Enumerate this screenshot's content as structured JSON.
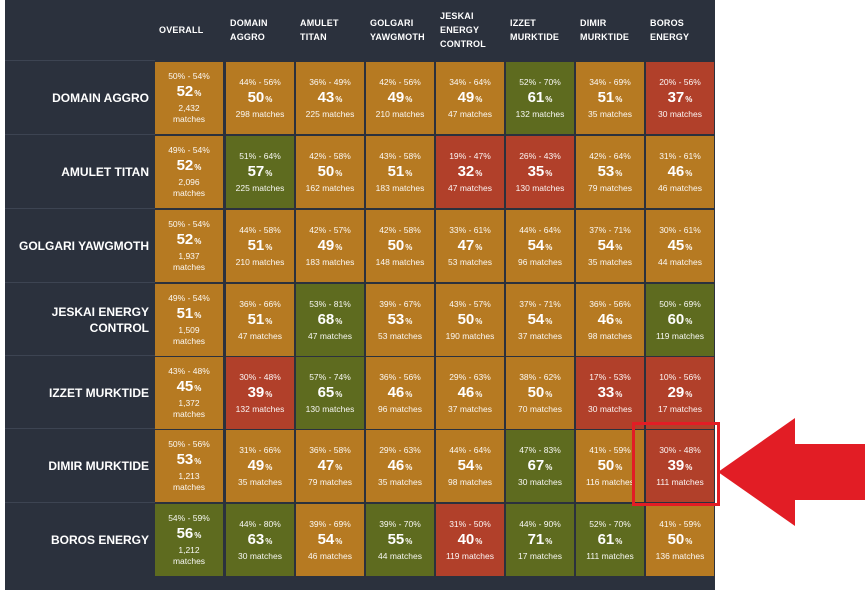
{
  "columns": [
    "OVERALL",
    "DOMAIN AGGRO",
    "AMULET TITAN",
    "GOLGARI YAWGMOTH",
    "JESKAI ENERGY CONTROL",
    "IZZET MURKTIDE",
    "DIMIR MURKTIDE",
    "BOROS ENERGY"
  ],
  "colors": {
    "background": "#2b313d",
    "even": "#b67a22",
    "favored": "#5e6b1f",
    "unfavored": "#b1402a",
    "highlight": "#e21d25"
  },
  "percent_symbol": "%",
  "rows": [
    {
      "label": "DOMAIN AGGRO",
      "cells": [
        {
          "range": "50% - 54%",
          "pct": "52",
          "matches": "2,432 matches",
          "tone": "even"
        },
        {
          "range": "44% - 56%",
          "pct": "50",
          "matches": "298 matches",
          "tone": "even"
        },
        {
          "range": "36% - 49%",
          "pct": "43",
          "matches": "225 matches",
          "tone": "even"
        },
        {
          "range": "42% - 56%",
          "pct": "49",
          "matches": "210 matches",
          "tone": "even"
        },
        {
          "range": "34% - 64%",
          "pct": "49",
          "matches": "47 matches",
          "tone": "even"
        },
        {
          "range": "52% - 70%",
          "pct": "61",
          "matches": "132 matches",
          "tone": "favored"
        },
        {
          "range": "34% - 69%",
          "pct": "51",
          "matches": "35 matches",
          "tone": "even"
        },
        {
          "range": "20% - 56%",
          "pct": "37",
          "matches": "30 matches",
          "tone": "unfavored"
        }
      ]
    },
    {
      "label": "AMULET TITAN",
      "cells": [
        {
          "range": "49% - 54%",
          "pct": "52",
          "matches": "2,096 matches",
          "tone": "even"
        },
        {
          "range": "51% - 64%",
          "pct": "57",
          "matches": "225 matches",
          "tone": "favored"
        },
        {
          "range": "42% - 58%",
          "pct": "50",
          "matches": "162 matches",
          "tone": "even"
        },
        {
          "range": "43% - 58%",
          "pct": "51",
          "matches": "183 matches",
          "tone": "even"
        },
        {
          "range": "19% - 47%",
          "pct": "32",
          "matches": "47 matches",
          "tone": "unfavored"
        },
        {
          "range": "26% - 43%",
          "pct": "35",
          "matches": "130 matches",
          "tone": "unfavored"
        },
        {
          "range": "42% - 64%",
          "pct": "53",
          "matches": "79 matches",
          "tone": "even"
        },
        {
          "range": "31% - 61%",
          "pct": "46",
          "matches": "46 matches",
          "tone": "even"
        }
      ]
    },
    {
      "label": "GOLGARI YAWGMOTH",
      "cells": [
        {
          "range": "50% - 54%",
          "pct": "52",
          "matches": "1,937 matches",
          "tone": "even"
        },
        {
          "range": "44% - 58%",
          "pct": "51",
          "matches": "210 matches",
          "tone": "even"
        },
        {
          "range": "42% - 57%",
          "pct": "49",
          "matches": "183 matches",
          "tone": "even"
        },
        {
          "range": "42% - 58%",
          "pct": "50",
          "matches": "148 matches",
          "tone": "even"
        },
        {
          "range": "33% - 61%",
          "pct": "47",
          "matches": "53 matches",
          "tone": "even"
        },
        {
          "range": "44% - 64%",
          "pct": "54",
          "matches": "96 matches",
          "tone": "even"
        },
        {
          "range": "37% - 71%",
          "pct": "54",
          "matches": "35 matches",
          "tone": "even"
        },
        {
          "range": "30% - 61%",
          "pct": "45",
          "matches": "44 matches",
          "tone": "even"
        }
      ]
    },
    {
      "label": "JESKAI ENERGY CONTROL",
      "cells": [
        {
          "range": "49% - 54%",
          "pct": "51",
          "matches": "1,509 matches",
          "tone": "even"
        },
        {
          "range": "36% - 66%",
          "pct": "51",
          "matches": "47 matches",
          "tone": "even"
        },
        {
          "range": "53% - 81%",
          "pct": "68",
          "matches": "47 matches",
          "tone": "favored"
        },
        {
          "range": "39% - 67%",
          "pct": "53",
          "matches": "53 matches",
          "tone": "even"
        },
        {
          "range": "43% - 57%",
          "pct": "50",
          "matches": "190 matches",
          "tone": "even"
        },
        {
          "range": "37% - 71%",
          "pct": "54",
          "matches": "37 matches",
          "tone": "even"
        },
        {
          "range": "36% - 56%",
          "pct": "46",
          "matches": "98 matches",
          "tone": "even"
        },
        {
          "range": "50% - 69%",
          "pct": "60",
          "matches": "119 matches",
          "tone": "favored"
        }
      ]
    },
    {
      "label": "IZZET MURKTIDE",
      "cells": [
        {
          "range": "43% - 48%",
          "pct": "45",
          "matches": "1,372 matches",
          "tone": "even"
        },
        {
          "range": "30% - 48%",
          "pct": "39",
          "matches": "132 matches",
          "tone": "unfavored"
        },
        {
          "range": "57% - 74%",
          "pct": "65",
          "matches": "130 matches",
          "tone": "favored"
        },
        {
          "range": "36% - 56%",
          "pct": "46",
          "matches": "96 matches",
          "tone": "even"
        },
        {
          "range": "29% - 63%",
          "pct": "46",
          "matches": "37 matches",
          "tone": "even"
        },
        {
          "range": "38% - 62%",
          "pct": "50",
          "matches": "70 matches",
          "tone": "even"
        },
        {
          "range": "17% - 53%",
          "pct": "33",
          "matches": "30 matches",
          "tone": "unfavored"
        },
        {
          "range": "10% - 56%",
          "pct": "29",
          "matches": "17 matches",
          "tone": "unfavored"
        }
      ]
    },
    {
      "label": "DIMIR MURKTIDE",
      "cells": [
        {
          "range": "50% - 56%",
          "pct": "53",
          "matches": "1,213 matches",
          "tone": "even"
        },
        {
          "range": "31% - 66%",
          "pct": "49",
          "matches": "35 matches",
          "tone": "even"
        },
        {
          "range": "36% - 58%",
          "pct": "47",
          "matches": "79 matches",
          "tone": "even"
        },
        {
          "range": "29% - 63%",
          "pct": "46",
          "matches": "35 matches",
          "tone": "even"
        },
        {
          "range": "44% - 64%",
          "pct": "54",
          "matches": "98 matches",
          "tone": "even"
        },
        {
          "range": "47% - 83%",
          "pct": "67",
          "matches": "30 matches",
          "tone": "favored"
        },
        {
          "range": "41% - 59%",
          "pct": "50",
          "matches": "116 matches",
          "tone": "even"
        },
        {
          "range": "30% - 48%",
          "pct": "39",
          "matches": "111 matches",
          "tone": "unfavored"
        }
      ]
    },
    {
      "label": "BOROS ENERGY",
      "cells": [
        {
          "range": "54% - 59%",
          "pct": "56",
          "matches": "1,212 matches",
          "tone": "favored"
        },
        {
          "range": "44% - 80%",
          "pct": "63",
          "matches": "30 matches",
          "tone": "favored"
        },
        {
          "range": "39% - 69%",
          "pct": "54",
          "matches": "46 matches",
          "tone": "even"
        },
        {
          "range": "39% - 70%",
          "pct": "55",
          "matches": "44 matches",
          "tone": "favored"
        },
        {
          "range": "31% - 50%",
          "pct": "40",
          "matches": "119 matches",
          "tone": "unfavored"
        },
        {
          "range": "44% - 90%",
          "pct": "71",
          "matches": "17 matches",
          "tone": "favored"
        },
        {
          "range": "52% - 70%",
          "pct": "61",
          "matches": "111 matches",
          "tone": "favored"
        },
        {
          "range": "41% - 59%",
          "pct": "50",
          "matches": "136 matches",
          "tone": "even"
        }
      ]
    }
  ]
}
